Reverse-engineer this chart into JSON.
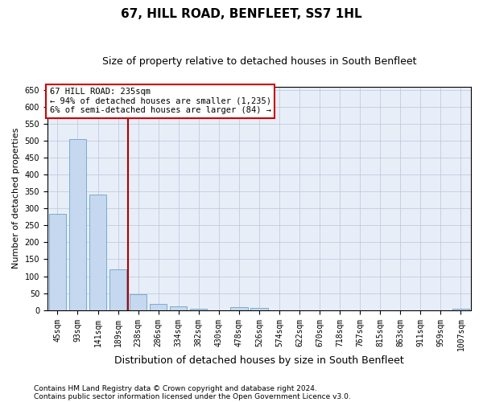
{
  "title": "67, HILL ROAD, BENFLEET, SS7 1HL",
  "subtitle": "Size of property relative to detached houses in South Benfleet",
  "xlabel": "Distribution of detached houses by size in South Benfleet",
  "ylabel": "Number of detached properties",
  "bin_labels": [
    "45sqm",
    "93sqm",
    "141sqm",
    "189sqm",
    "238sqm",
    "286sqm",
    "334sqm",
    "382sqm",
    "430sqm",
    "478sqm",
    "526sqm",
    "574sqm",
    "622sqm",
    "670sqm",
    "718sqm",
    "767sqm",
    "815sqm",
    "863sqm",
    "911sqm",
    "959sqm",
    "1007sqm"
  ],
  "bar_values": [
    283,
    506,
    340,
    120,
    46,
    17,
    10,
    4,
    0,
    9,
    5,
    0,
    0,
    0,
    0,
    0,
    0,
    0,
    0,
    0,
    4
  ],
  "bar_color": "#c5d8ef",
  "bar_edge_color": "#6ba3c8",
  "vline_color": "#aa0000",
  "annotation_text": "67 HILL ROAD: 235sqm\n← 94% of detached houses are smaller (1,235)\n6% of semi-detached houses are larger (84) →",
  "annotation_box_color": "white",
  "annotation_box_edge": "#cc0000",
  "ylim": [
    0,
    660
  ],
  "yticks": [
    0,
    50,
    100,
    150,
    200,
    250,
    300,
    350,
    400,
    450,
    500,
    550,
    600,
    650
  ],
  "footnote1": "Contains HM Land Registry data © Crown copyright and database right 2024.",
  "footnote2": "Contains public sector information licensed under the Open Government Licence v3.0.",
  "title_fontsize": 11,
  "subtitle_fontsize": 9,
  "xlabel_fontsize": 9,
  "ylabel_fontsize": 8,
  "tick_fontsize": 7,
  "annotation_fontsize": 7.5,
  "footnote_fontsize": 6.5,
  "background_color": "#e8eef8",
  "grid_color": "#c0cce0"
}
